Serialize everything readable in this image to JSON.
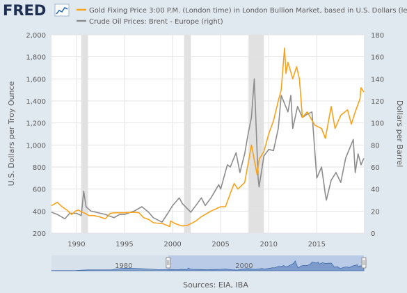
{
  "header": {
    "logo_text": "FRED",
    "legend": [
      {
        "label": "Gold Fixing Price 3:00 P.M. (London time) in London Bullion Market, based in U.S. Dollars (left)",
        "color": "#f6a21a"
      },
      {
        "label": "Crude Oil Prices: Brent - Europe (right)",
        "color": "#8c8c8c"
      }
    ]
  },
  "navigator": {
    "labels": [
      "1980",
      "2000"
    ],
    "selection_start_year": 1987.4,
    "selection_end_year": 2019.9,
    "range_start_year": 1968,
    "range_end_year": 2019.9
  },
  "footer": {
    "sources": "Sources: EIA, IBA"
  },
  "chart_data": {
    "type": "line",
    "title": "",
    "y_left_label": "U.S. Dollars per Troy Ounce",
    "y_right_label": "Dollars per Barrel",
    "x_range": [
      1987.4,
      2019.9
    ],
    "x_ticks": [
      1990,
      1995,
      2000,
      2005,
      2010,
      2015
    ],
    "y_left_range": [
      200,
      2000
    ],
    "y_left_ticks": [
      200,
      400,
      600,
      800,
      "1,000",
      "1,200",
      "1,400",
      "1,600",
      "1,800",
      "2,000"
    ],
    "y_right_range": [
      0,
      180
    ],
    "y_right_ticks": [
      0,
      20,
      40,
      60,
      80,
      100,
      120,
      140,
      160,
      180
    ],
    "grid": true,
    "recession_shading": [
      [
        1990.5,
        1991.2
      ],
      [
        2001.2,
        2001.9
      ],
      [
        2007.9,
        2009.5
      ]
    ],
    "series": [
      {
        "name": "Gold Fixing Price 3:00 P.M. (London time) in London Bullion Market, based in U.S. Dollars (left)",
        "axis": "left",
        "color": "#f6a21a",
        "points": [
          [
            1987.4,
            450
          ],
          [
            1987.8,
            470
          ],
          [
            1988.0,
            480
          ],
          [
            1988.5,
            440
          ],
          [
            1989.0,
            410
          ],
          [
            1989.5,
            370
          ],
          [
            1989.9,
            400
          ],
          [
            1990.2,
            410
          ],
          [
            1990.6,
            390
          ],
          [
            1990.9,
            380
          ],
          [
            1991.3,
            360
          ],
          [
            1991.8,
            360
          ],
          [
            1992.5,
            345
          ],
          [
            1993.0,
            330
          ],
          [
            1993.5,
            380
          ],
          [
            1994.0,
            385
          ],
          [
            1995.0,
            385
          ],
          [
            1996.0,
            390
          ],
          [
            1996.5,
            385
          ],
          [
            1997.0,
            340
          ],
          [
            1997.5,
            325
          ],
          [
            1998.0,
            295
          ],
          [
            1999.0,
            285
          ],
          [
            1999.7,
            260
          ],
          [
            1999.8,
            310
          ],
          [
            2000.3,
            285
          ],
          [
            2001.0,
            265
          ],
          [
            2001.5,
            270
          ],
          [
            2002.0,
            290
          ],
          [
            2002.5,
            315
          ],
          [
            2003.0,
            350
          ],
          [
            2004.0,
            400
          ],
          [
            2005.0,
            440
          ],
          [
            2005.5,
            440
          ],
          [
            2006.0,
            560
          ],
          [
            2006.4,
            650
          ],
          [
            2006.8,
            600
          ],
          [
            2007.5,
            660
          ],
          [
            2008.0,
            900
          ],
          [
            2008.2,
            1000
          ],
          [
            2008.8,
            730
          ],
          [
            2009.0,
            870
          ],
          [
            2009.5,
            940
          ],
          [
            2010.0,
            1100
          ],
          [
            2010.5,
            1220
          ],
          [
            2011.0,
            1400
          ],
          [
            2011.3,
            1500
          ],
          [
            2011.65,
            1880
          ],
          [
            2011.8,
            1650
          ],
          [
            2012.0,
            1750
          ],
          [
            2012.5,
            1600
          ],
          [
            2012.9,
            1710
          ],
          [
            2013.2,
            1600
          ],
          [
            2013.5,
            1250
          ],
          [
            2014.0,
            1300
          ],
          [
            2014.8,
            1180
          ],
          [
            2015.5,
            1150
          ],
          [
            2015.9,
            1060
          ],
          [
            2016.5,
            1350
          ],
          [
            2016.9,
            1150
          ],
          [
            2017.5,
            1270
          ],
          [
            2018.2,
            1320
          ],
          [
            2018.6,
            1190
          ],
          [
            2019.0,
            1300
          ],
          [
            2019.5,
            1420
          ],
          [
            2019.6,
            1520
          ],
          [
            2019.9,
            1480
          ]
        ]
      },
      {
        "name": "Crude Oil Prices: Brent - Europe (right)",
        "axis": "right",
        "color": "#8c8c8c",
        "points": [
          [
            1987.4,
            19
          ],
          [
            1988.0,
            17
          ],
          [
            1988.8,
            13
          ],
          [
            1989.3,
            18
          ],
          [
            1990.0,
            18
          ],
          [
            1990.5,
            16
          ],
          [
            1990.75,
            38
          ],
          [
            1991.0,
            24
          ],
          [
            1991.5,
            20
          ],
          [
            1992.0,
            19
          ],
          [
            1993.0,
            17
          ],
          [
            1993.9,
            14
          ],
          [
            1994.5,
            17
          ],
          [
            1995.0,
            17
          ],
          [
            1996.0,
            20
          ],
          [
            1996.8,
            24
          ],
          [
            1997.5,
            19
          ],
          [
            1998.0,
            14
          ],
          [
            1998.9,
            10
          ],
          [
            1999.5,
            18
          ],
          [
            2000.0,
            25
          ],
          [
            2000.7,
            32
          ],
          [
            2001.0,
            27
          ],
          [
            2001.9,
            19
          ],
          [
            2002.5,
            26
          ],
          [
            2003.0,
            32
          ],
          [
            2003.4,
            25
          ],
          [
            2004.0,
            32
          ],
          [
            2004.8,
            44
          ],
          [
            2005.0,
            40
          ],
          [
            2005.7,
            62
          ],
          [
            2006.0,
            60
          ],
          [
            2006.6,
            73
          ],
          [
            2007.0,
            55
          ],
          [
            2007.5,
            72
          ],
          [
            2007.9,
            92
          ],
          [
            2008.2,
            105
          ],
          [
            2008.5,
            140
          ],
          [
            2008.9,
            50
          ],
          [
            2009.0,
            42
          ],
          [
            2009.5,
            70
          ],
          [
            2010.0,
            76
          ],
          [
            2010.5,
            75
          ],
          [
            2011.0,
            95
          ],
          [
            2011.3,
            125
          ],
          [
            2012.0,
            110
          ],
          [
            2012.3,
            125
          ],
          [
            2012.5,
            95
          ],
          [
            2013.0,
            115
          ],
          [
            2013.5,
            105
          ],
          [
            2014.0,
            108
          ],
          [
            2014.5,
            110
          ],
          [
            2015.0,
            50
          ],
          [
            2015.5,
            60
          ],
          [
            2015.9,
            35
          ],
          [
            2016.0,
            30
          ],
          [
            2016.5,
            48
          ],
          [
            2017.0,
            55
          ],
          [
            2017.5,
            46
          ],
          [
            2018.0,
            68
          ],
          [
            2018.8,
            85
          ],
          [
            2019.0,
            55
          ],
          [
            2019.3,
            72
          ],
          [
            2019.6,
            62
          ],
          [
            2019.9,
            68
          ]
        ]
      }
    ]
  }
}
